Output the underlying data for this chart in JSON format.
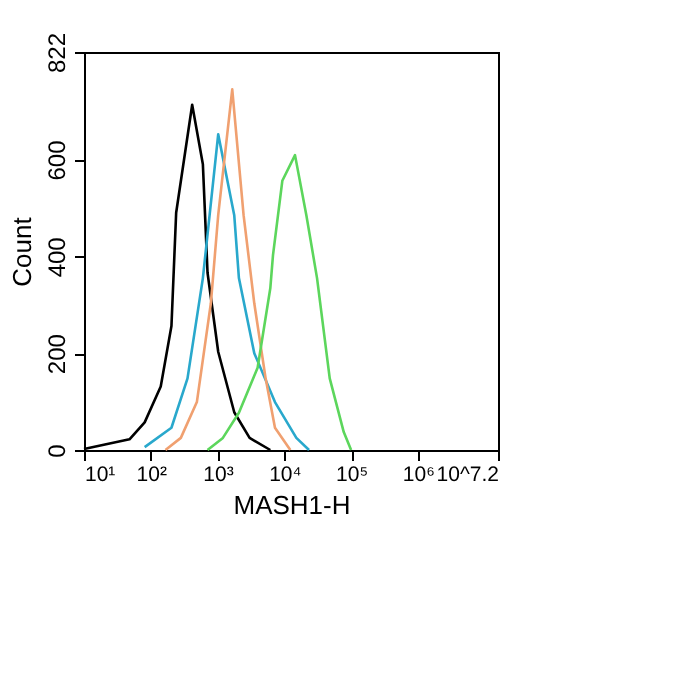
{
  "chart_data": {
    "type": "line",
    "xlabel": "MASH1-H",
    "ylabel": "Count",
    "log": "x",
    "xlim": [
      10,
      15848932
    ],
    "ylim": [
      0,
      822
    ],
    "xticks": [
      {
        "value": 10,
        "label": "10¹"
      },
      {
        "value": 100,
        "label": "10²"
      },
      {
        "value": 1000,
        "label": "10³"
      },
      {
        "value": 10000,
        "label": "10⁴"
      },
      {
        "value": 100000,
        "label": "10⁵"
      },
      {
        "value": 1000000,
        "label": "10⁶"
      },
      {
        "value": 15848932,
        "label": "10^7.2"
      }
    ],
    "yticks": [
      0,
      200,
      400,
      600,
      822
    ],
    "grid": false,
    "legend": false,
    "marker": "none",
    "line_style": "solid",
    "series": [
      {
        "color": "#000000",
        "x": [
          10,
          48,
          81,
          141,
          204,
          240,
          417,
          603,
          708,
          1023,
          1778,
          3020,
          6166
        ],
        "values": [
          2,
          22,
          57,
          131,
          256,
          490,
          713,
          590,
          366,
          203,
          78,
          25,
          0
        ]
      },
      {
        "color": "#29a8cc",
        "x": [
          81,
          204,
          355,
          603,
          1023,
          1778,
          2089,
          3548,
          7244,
          15136,
          23442
        ],
        "values": [
          6,
          46,
          148,
          355,
          652,
          485,
          355,
          200,
          99,
          25,
          0
        ]
      },
      {
        "color": "#f0a070",
        "x": [
          166,
          282,
          490,
          794,
          1023,
          1660,
          2455,
          3548,
          5248,
          7244,
          12303
        ],
        "values": [
          0,
          25,
          99,
          303,
          485,
          745,
          485,
          303,
          148,
          46,
          0
        ]
      },
      {
        "color": "#5cd65c",
        "x": [
          708,
          1202,
          2089,
          3981,
          6166,
          6761,
          9333,
          14454,
          21380,
          30903,
          47863,
          77625,
          100000
        ],
        "values": [
          0,
          25,
          77,
          170,
          334,
          402,
          556,
          609,
          485,
          355,
          148,
          37,
          0
        ]
      }
    ]
  }
}
